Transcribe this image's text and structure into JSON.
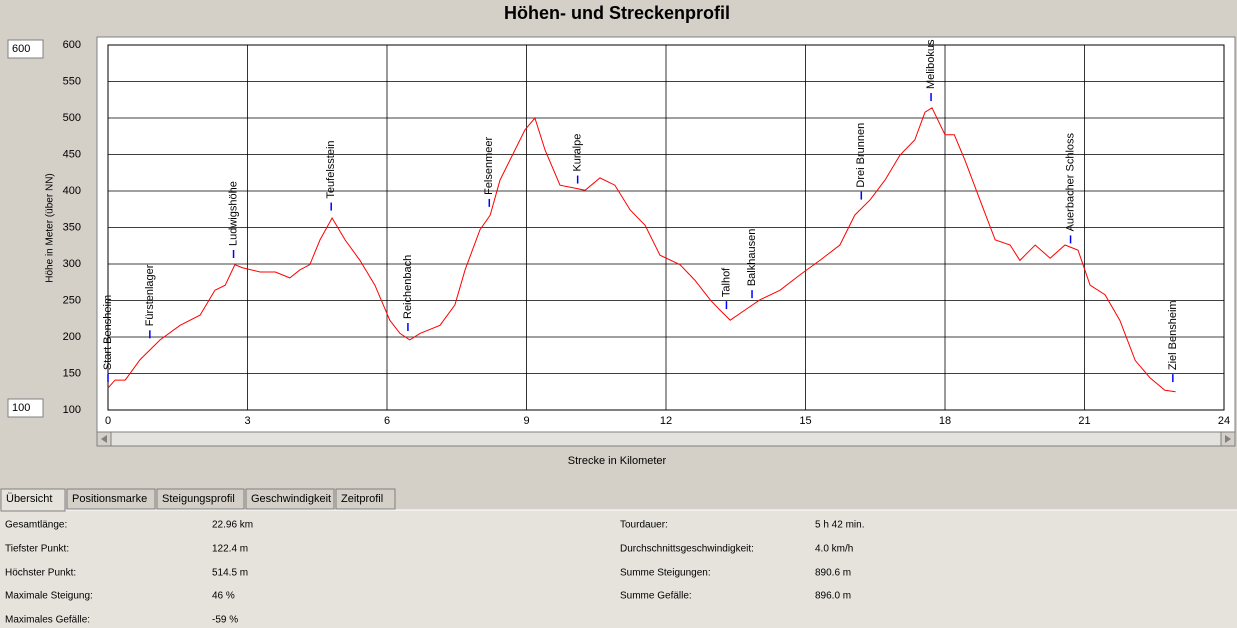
{
  "chart_data": {
    "type": "line",
    "title": "Höhen- und Streckenprofil",
    "x_label": "Strecke in Kilometer",
    "y_label": "Höhe in Meter (über NN)",
    "xlim": [
      0,
      24
    ],
    "xticks": [
      0,
      3,
      6,
      9,
      12,
      15,
      18,
      21,
      24
    ],
    "ylim": [
      100,
      600
    ],
    "yticks": [
      100,
      150,
      200,
      250,
      300,
      350,
      400,
      450,
      500,
      550,
      600
    ],
    "grid": true,
    "series": [
      {
        "color": "#ff0000",
        "x": [
          0,
          0.15,
          0.37,
          0.69,
          1.12,
          1.55,
          1.98,
          2.3,
          2.52,
          2.73,
          2.88,
          3.27,
          3.6,
          3.91,
          4.13,
          4.34,
          4.56,
          4.82,
          5.1,
          5.42,
          5.74,
          6.06,
          6.28,
          6.49,
          6.71,
          7.14,
          7.46,
          7.68,
          8.0,
          8.22,
          8.43,
          8.75,
          8.97,
          9.18,
          9.4,
          9.72,
          10.04,
          10.26,
          10.58,
          10.9,
          11.23,
          11.55,
          11.87,
          12.3,
          12.62,
          12.95,
          13.16,
          13.38,
          13.7,
          14.02,
          14.45,
          14.88,
          15.31,
          15.74,
          16.06,
          16.39,
          16.71,
          17.03,
          17.35,
          17.57,
          17.72,
          18.0,
          18.2,
          18.43,
          18.75,
          19.08,
          19.4,
          19.61,
          19.94,
          20.26,
          20.58,
          20.86,
          21.12,
          21.44,
          21.76,
          22.09,
          22.41,
          22.73,
          22.96
        ],
        "values": [
          130,
          141,
          141,
          169,
          196,
          216,
          230,
          264,
          271,
          299,
          295,
          289,
          289,
          281,
          292,
          299,
          333,
          363,
          333,
          305,
          271,
          223,
          205,
          196,
          205,
          216,
          244,
          292,
          347,
          367,
          415,
          456,
          484,
          500,
          456,
          408,
          404,
          401,
          418,
          408,
          374,
          353,
          312,
          299,
          278,
          251,
          237,
          223,
          237,
          251,
          264,
          285,
          305,
          326,
          367,
          388,
          415,
          449,
          470,
          508,
          514,
          477,
          477,
          442,
          388,
          333,
          326,
          305,
          326,
          308,
          326,
          319,
          271,
          258,
          223,
          168,
          144,
          127,
          125
        ]
      }
    ],
    "waypoints": [
      {
        "label": "Start Bensheim",
        "x": 0,
        "y": 130
      },
      {
        "label": "Fürstenlager",
        "x": 0.9,
        "y": 190
      },
      {
        "label": "Ludwigshöhe",
        "x": 2.7,
        "y": 300
      },
      {
        "label": "Teufelsstein",
        "x": 4.8,
        "y": 365
      },
      {
        "label": "Reichenbach",
        "x": 6.45,
        "y": 200
      },
      {
        "label": "Felsenmeer",
        "x": 8.2,
        "y": 370
      },
      {
        "label": "Kuralpe",
        "x": 10.1,
        "y": 402
      },
      {
        "label": "Talhof",
        "x": 13.3,
        "y": 230
      },
      {
        "label": "Balkhausen",
        "x": 13.85,
        "y": 245
      },
      {
        "label": "Drei Brunnen",
        "x": 16.2,
        "y": 380
      },
      {
        "label": "Melibokus",
        "x": 17.7,
        "y": 515
      },
      {
        "label": "Auerbacher Schloss",
        "x": 20.7,
        "y": 320
      },
      {
        "label": "Ziel Bensheim",
        "x": 22.9,
        "y": 130
      }
    ]
  },
  "tabs": [
    "Übersicht",
    "Positionsmarke",
    "Steigungsprofil",
    "Geschwindigkeit",
    "Zeitprofil"
  ],
  "stats": {
    "left": [
      [
        "Gesamtlänge:",
        "22.96 km"
      ],
      [
        "Tiefster Punkt:",
        "122.4 m"
      ],
      [
        "Höchster Punkt:",
        "514.5 m"
      ],
      [
        "Maximale Steigung:",
        "46 %"
      ],
      [
        "Maximales Gefälle:",
        "-59 %"
      ]
    ],
    "right": [
      [
        "Tourdauer:",
        "5 h 42 min."
      ],
      [
        "Durchschnittsgeschwindigkeit:",
        "4.0 km/h"
      ],
      [
        "Summe Steigungen:",
        "890.6 m"
      ],
      [
        "Summe Gefälle:",
        "896.0 m"
      ]
    ]
  }
}
